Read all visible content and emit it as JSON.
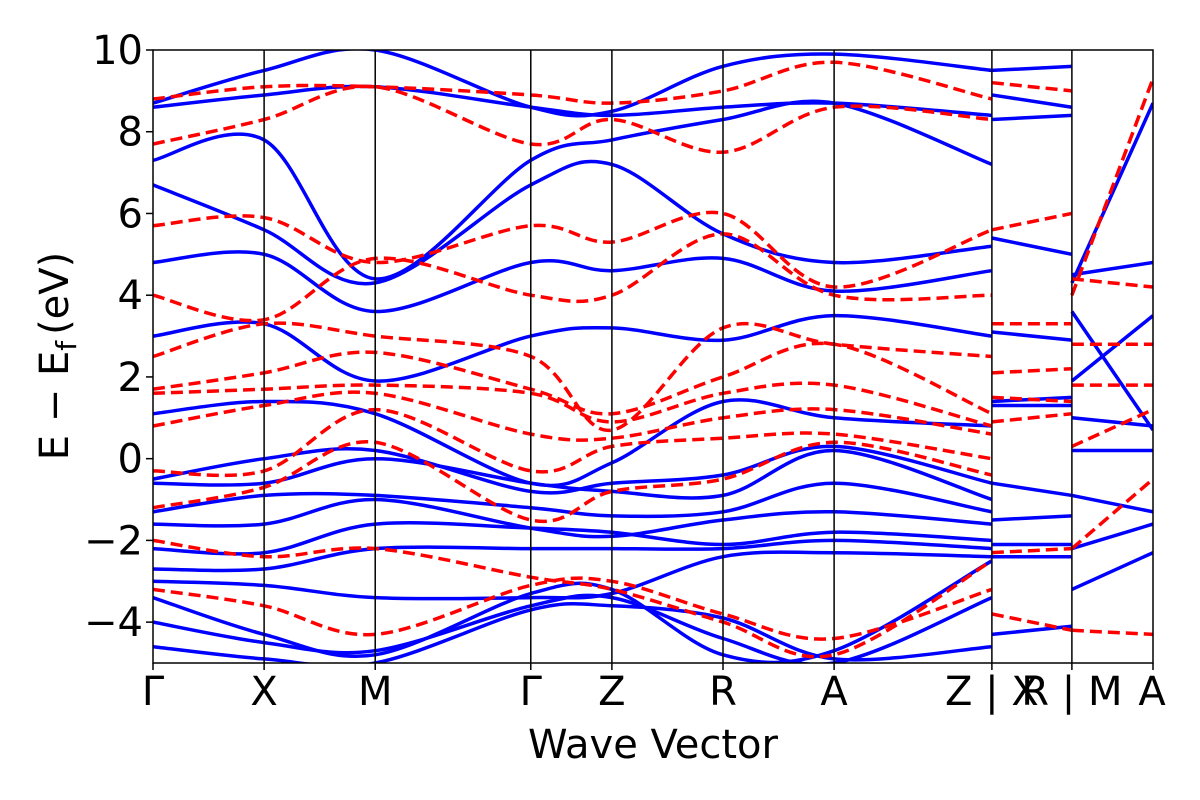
{
  "chart_data": {
    "type": "line",
    "title": "",
    "xlabel": "Wave Vector",
    "ylabel": "E − E",
    "ylabel_sub": "f",
    "ylabel_unit": "(eV)",
    "ylim": [
      -5,
      10
    ],
    "yticks": [
      -4,
      -2,
      0,
      2,
      4,
      6,
      8,
      10
    ],
    "ytick_labels": [
      "−4",
      "−2",
      "0",
      "2",
      "4",
      "6",
      "8",
      "10"
    ],
    "xlim": [
      0,
      9.0
    ],
    "kpoints": [
      {
        "label": "Γ",
        "x": 0.0
      },
      {
        "label": "X",
        "x": 1.0
      },
      {
        "label": "M",
        "x": 2.0
      },
      {
        "label": "Γ",
        "x": 3.4
      },
      {
        "label": "Z",
        "x": 4.13
      },
      {
        "label": "R",
        "x": 5.13
      },
      {
        "label": "A",
        "x": 6.13
      },
      {
        "label": "Z | X",
        "x": 7.55
      },
      {
        "label": "R | M",
        "x": 8.27
      },
      {
        "label": "A",
        "x": 9.0
      }
    ],
    "segment_breaks": [
      7.55,
      8.27
    ],
    "grid": false,
    "series": [
      {
        "style": "solid",
        "color": "#0000ff",
        "bands": [
          {
            "x": [
              0,
              1,
              2,
              3.4,
              4.13,
              5.13,
              6.13,
              7.55
            ],
            "y": [
              -4.6,
              -4.9,
              -5.0,
              -3.7,
              -3.6,
              -3.9,
              -4.9,
              -4.6
            ]
          },
          {
            "x": [
              0,
              1,
              2,
              3.4,
              4.13,
              5.13,
              6.13,
              7.55
            ],
            "y": [
              -4.0,
              -4.5,
              -4.7,
              -3.6,
              -3.4,
              -4.4,
              -5.0,
              -3.4
            ]
          },
          {
            "x": [
              0,
              1,
              2,
              3.4,
              4.13,
              5.13,
              6.13,
              7.55
            ],
            "y": [
              -3.4,
              -4.3,
              -4.8,
              -3.3,
              -3.2,
              -4.8,
              -4.7,
              -2.5
            ]
          },
          {
            "x": [
              0,
              1,
              2,
              3.4,
              4.13,
              5.13,
              6.13,
              7.55
            ],
            "y": [
              -3.0,
              -3.1,
              -3.4,
              -3.4,
              -3.3,
              -2.4,
              -2.3,
              -2.4
            ]
          },
          {
            "x": [
              0,
              1,
              2,
              3.4,
              4.13,
              5.13,
              6.13,
              7.55
            ],
            "y": [
              -2.7,
              -2.7,
              -2.2,
              -2.2,
              -2.2,
              -2.2,
              -2.0,
              -2.2
            ]
          },
          {
            "x": [
              0,
              1,
              2,
              3.4,
              4.13,
              5.13,
              6.13,
              7.55
            ],
            "y": [
              -2.2,
              -2.3,
              -1.6,
              -1.7,
              -1.8,
              -2.1,
              -1.8,
              -2.0
            ]
          },
          {
            "x": [
              0,
              1,
              2,
              3.4,
              4.13,
              5.13,
              6.13,
              7.55
            ],
            "y": [
              -1.6,
              -1.6,
              -1.0,
              -1.7,
              -1.9,
              -1.5,
              -1.3,
              -1.6
            ]
          },
          {
            "x": [
              0,
              1,
              2,
              3.4,
              4.13,
              5.13,
              6.13,
              7.55
            ],
            "y": [
              -1.3,
              -0.9,
              -0.9,
              -1.2,
              -1.4,
              -1.3,
              -0.6,
              -1.3
            ]
          },
          {
            "x": [
              0,
              1,
              2,
              3.4,
              4.13,
              5.13,
              6.13,
              7.55
            ],
            "y": [
              -0.6,
              -0.6,
              0.0,
              -0.6,
              -0.8,
              -0.9,
              0.2,
              -1.0
            ]
          },
          {
            "x": [
              0,
              1,
              2,
              3.4,
              4.13,
              5.13,
              6.13,
              7.55
            ],
            "y": [
              -0.5,
              0.0,
              0.2,
              -0.8,
              -0.6,
              -0.4,
              0.3,
              -0.6
            ]
          },
          {
            "x": [
              0,
              1,
              2,
              3.4,
              4.13,
              5.13,
              6.13,
              7.55
            ],
            "y": [
              1.1,
              1.4,
              1.1,
              -0.6,
              -0.1,
              1.4,
              1.0,
              0.8
            ]
          },
          {
            "x": [
              0,
              1,
              2,
              3.4,
              4.13,
              5.13,
              6.13,
              7.55
            ],
            "y": [
              3.0,
              3.3,
              1.9,
              3.0,
              3.2,
              2.9,
              3.5,
              3.0
            ]
          },
          {
            "x": [
              0,
              1,
              2,
              3.4,
              4.13,
              5.13,
              6.13,
              7.55
            ],
            "y": [
              4.8,
              5.0,
              3.6,
              4.8,
              4.6,
              4.9,
              4.1,
              4.6
            ]
          },
          {
            "x": [
              0,
              1,
              2,
              3.4,
              4.13,
              5.13,
              6.13,
              7.55
            ],
            "y": [
              6.7,
              5.6,
              4.3,
              6.7,
              7.2,
              5.5,
              4.8,
              5.2
            ]
          },
          {
            "x": [
              0,
              1,
              2,
              3.4,
              4.13,
              5.13,
              6.13,
              7.55
            ],
            "y": [
              7.3,
              7.8,
              4.4,
              7.3,
              7.8,
              8.3,
              8.7,
              7.2
            ]
          },
          {
            "x": [
              0,
              1,
              2,
              3.4,
              4.13,
              5.13,
              6.13,
              7.55
            ],
            "y": [
              8.6,
              8.9,
              9.1,
              8.6,
              8.4,
              8.6,
              8.7,
              8.4
            ]
          },
          {
            "x": [
              0,
              1,
              2,
              3.4,
              4.13,
              5.13,
              6.13,
              7.55
            ],
            "y": [
              8.7,
              9.5,
              10.0,
              8.6,
              8.5,
              9.6,
              9.9,
              9.5
            ]
          },
          {
            "x": [
              7.55,
              8.27
            ],
            "y": [
              -4.3,
              -4.1
            ]
          },
          {
            "x": [
              7.55,
              8.27
            ],
            "y": [
              -2.4,
              -2.4
            ]
          },
          {
            "x": [
              7.55,
              8.27
            ],
            "y": [
              -2.1,
              -2.1
            ]
          },
          {
            "x": [
              7.55,
              8.27
            ],
            "y": [
              -1.5,
              -1.4
            ]
          },
          {
            "x": [
              7.55,
              8.27
            ],
            "y": [
              -0.6,
              -0.9
            ]
          },
          {
            "x": [
              7.55,
              8.27
            ],
            "y": [
              1.3,
              1.3
            ]
          },
          {
            "x": [
              7.55,
              8.27
            ],
            "y": [
              1.4,
              1.5
            ]
          },
          {
            "x": [
              7.55,
              8.27
            ],
            "y": [
              3.1,
              2.9
            ]
          },
          {
            "x": [
              7.55,
              8.27
            ],
            "y": [
              5.4,
              5.0
            ]
          },
          {
            "x": [
              7.55,
              8.27
            ],
            "y": [
              8.3,
              8.4
            ]
          },
          {
            "x": [
              7.55,
              8.27
            ],
            "y": [
              8.9,
              8.6
            ]
          },
          {
            "x": [
              7.55,
              8.27
            ],
            "y": [
              9.5,
              9.6
            ]
          },
          {
            "x": [
              8.27,
              9.0
            ],
            "y": [
              -3.2,
              -2.3
            ]
          },
          {
            "x": [
              8.27,
              9.0
            ],
            "y": [
              -2.2,
              -1.6
            ]
          },
          {
            "x": [
              8.27,
              9.0
            ],
            "y": [
              -0.9,
              -1.3
            ]
          },
          {
            "x": [
              8.27,
              9.0
            ],
            "y": [
              0.2,
              0.2
            ]
          },
          {
            "x": [
              8.27,
              9.0
            ],
            "y": [
              1.0,
              0.8
            ]
          },
          {
            "x": [
              8.27,
              9.0
            ],
            "y": [
              1.9,
              3.5
            ]
          },
          {
            "x": [
              8.27,
              9.0
            ],
            "y": [
              3.6,
              0.7
            ]
          },
          {
            "x": [
              8.27,
              9.0
            ],
            "y": [
              4.3,
              8.7
            ]
          },
          {
            "x": [
              8.27,
              9.0
            ],
            "y": [
              4.5,
              4.8
            ]
          }
        ]
      },
      {
        "style": "dashed",
        "color": "#ff0000",
        "bands": [
          {
            "x": [
              0,
              1,
              2,
              3.4,
              4.13,
              5.13,
              6.13,
              7.55
            ],
            "y": [
              -3.2,
              -3.6,
              -4.3,
              -3.1,
              -3.0,
              -3.8,
              -4.4,
              -3.2
            ]
          },
          {
            "x": [
              0,
              1,
              2,
              3.4,
              4.13,
              5.13,
              6.13,
              7.55
            ],
            "y": [
              -2.0,
              -2.4,
              -2.2,
              -2.9,
              -3.2,
              -4.0,
              -4.8,
              -2.5
            ]
          },
          {
            "x": [
              0,
              1,
              2,
              3.4,
              4.13,
              5.13,
              6.13,
              7.55
            ],
            "y": [
              -1.2,
              -0.7,
              0.4,
              -1.5,
              -0.8,
              -0.5,
              0.4,
              -0.4
            ]
          },
          {
            "x": [
              0,
              1,
              2,
              3.4,
              4.13,
              5.13,
              6.13,
              7.55
            ],
            "y": [
              -0.3,
              -0.3,
              1.2,
              -0.3,
              0.3,
              0.5,
              0.6,
              0.0
            ]
          },
          {
            "x": [
              0,
              1,
              2,
              3.4,
              4.13,
              5.13,
              6.13,
              7.55
            ],
            "y": [
              0.8,
              1.3,
              1.6,
              0.6,
              0.5,
              1.0,
              1.2,
              0.6
            ]
          },
          {
            "x": [
              0,
              1,
              2,
              3.4,
              4.13,
              5.13,
              6.13,
              7.55
            ],
            "y": [
              1.6,
              1.7,
              1.8,
              1.6,
              0.9,
              1.6,
              1.8,
              0.8
            ]
          },
          {
            "x": [
              0,
              1,
              2,
              3.4,
              4.13,
              5.13,
              6.13,
              7.55
            ],
            "y": [
              1.7,
              2.1,
              2.6,
              1.7,
              1.1,
              2.0,
              2.8,
              1.1
            ]
          },
          {
            "x": [
              0,
              1,
              2,
              3.4,
              4.13,
              5.13,
              6.13,
              7.55
            ],
            "y": [
              2.5,
              3.3,
              3.0,
              2.5,
              0.7,
              3.2,
              2.8,
              2.5
            ]
          },
          {
            "x": [
              0,
              1,
              2,
              3.4,
              4.13,
              5.13,
              6.13,
              7.55
            ],
            "y": [
              4.0,
              3.4,
              4.9,
              4.0,
              4.0,
              5.5,
              4.0,
              4.0
            ]
          },
          {
            "x": [
              0,
              1,
              2,
              3.4,
              4.13,
              5.13,
              6.13,
              7.55
            ],
            "y": [
              5.7,
              5.9,
              4.8,
              5.7,
              5.3,
              6.0,
              4.2,
              5.6
            ]
          },
          {
            "x": [
              0,
              1,
              2,
              3.4,
              4.13,
              5.13,
              6.13,
              7.55
            ],
            "y": [
              7.7,
              8.3,
              9.1,
              7.7,
              8.3,
              7.5,
              8.6,
              8.3
            ]
          },
          {
            "x": [
              0,
              1,
              2,
              3.4,
              4.13,
              5.13,
              6.13,
              7.55
            ],
            "y": [
              8.8,
              9.1,
              9.1,
              8.9,
              8.7,
              9.0,
              9.7,
              8.8
            ]
          },
          {
            "x": [
              7.55,
              8.27
            ],
            "y": [
              -3.8,
              -4.2
            ]
          },
          {
            "x": [
              7.55,
              8.27
            ],
            "y": [
              -2.3,
              -2.2
            ]
          },
          {
            "x": [
              7.55,
              8.27
            ],
            "y": [
              0.9,
              1.1
            ]
          },
          {
            "x": [
              7.55,
              8.27
            ],
            "y": [
              1.5,
              1.4
            ]
          },
          {
            "x": [
              7.55,
              8.27
            ],
            "y": [
              2.1,
              2.2
            ]
          },
          {
            "x": [
              7.55,
              8.27
            ],
            "y": [
              3.3,
              3.3
            ]
          },
          {
            "x": [
              7.55,
              8.27
            ],
            "y": [
              5.6,
              6.0
            ]
          },
          {
            "x": [
              7.55,
              8.27
            ],
            "y": [
              9.2,
              9.0
            ]
          },
          {
            "x": [
              8.27,
              9.0
            ],
            "y": [
              -4.2,
              -4.3
            ]
          },
          {
            "x": [
              8.27,
              9.0
            ],
            "y": [
              -2.2,
              -0.5
            ]
          },
          {
            "x": [
              8.27,
              9.0
            ],
            "y": [
              0.3,
              1.2
            ]
          },
          {
            "x": [
              8.27,
              9.0
            ],
            "y": [
              1.8,
              1.8
            ]
          },
          {
            "x": [
              8.27,
              9.0
            ],
            "y": [
              2.8,
              2.8
            ]
          },
          {
            "x": [
              8.27,
              9.0
            ],
            "y": [
              4.4,
              4.2
            ]
          },
          {
            "x": [
              8.27,
              9.0
            ],
            "y": [
              4.0,
              9.3
            ]
          }
        ]
      }
    ]
  }
}
